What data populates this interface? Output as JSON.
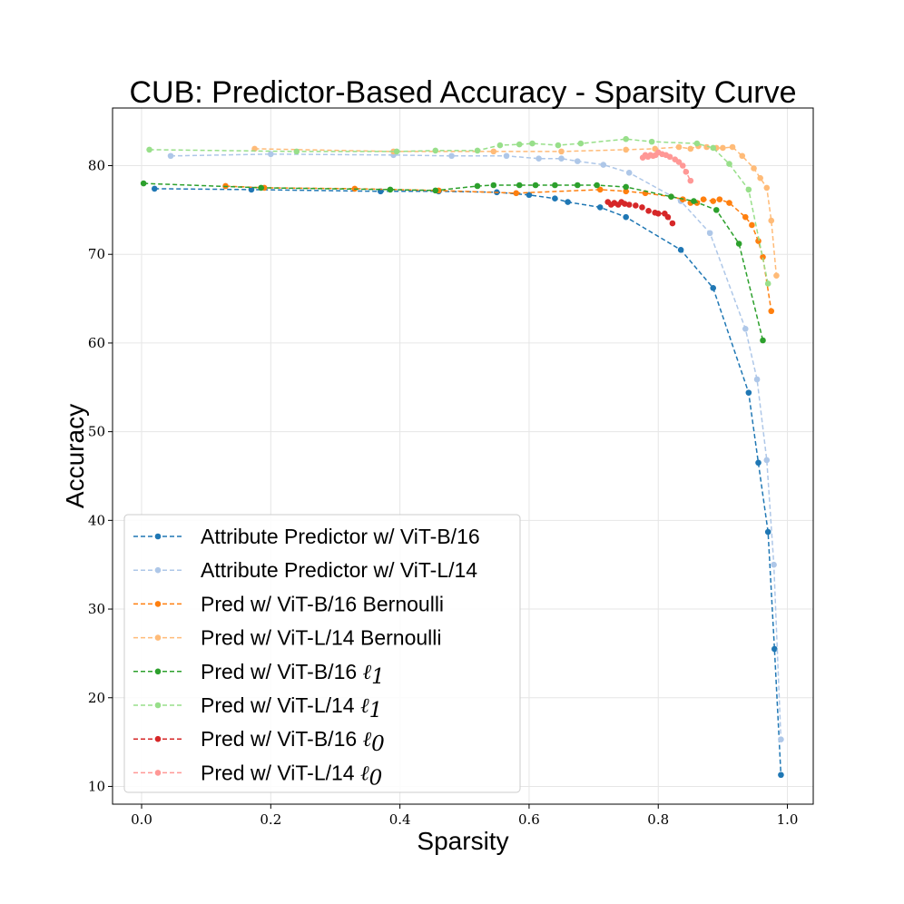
{
  "chart_data": {
    "type": "line",
    "title": "CUB: Predictor-Based Accuracy - Sparsity Curve",
    "xlabel": "Sparsity",
    "ylabel": "Accuracy",
    "xlim": [
      -0.045,
      1.04
    ],
    "ylim": [
      8.0,
      86.5
    ],
    "xticks": [
      0.0,
      0.2,
      0.4,
      0.6,
      0.8,
      1.0
    ],
    "xtick_labels": [
      "0.0",
      "0.2",
      "0.4",
      "0.6",
      "0.8",
      "1.0"
    ],
    "yticks": [
      10,
      20,
      30,
      40,
      50,
      60,
      70,
      80
    ],
    "ytick_labels": [
      "10",
      "20",
      "30",
      "40",
      "50",
      "60",
      "70",
      "80"
    ],
    "grid": true,
    "legend_position": "lower-left",
    "series": [
      {
        "name": "Attribute Predictor w/ ViT-B/16",
        "color": "#1f77b4",
        "x": [
          0.02,
          0.17,
          0.37,
          0.46,
          0.55,
          0.6,
          0.64,
          0.66,
          0.71,
          0.75,
          0.835,
          0.885,
          0.94,
          0.955,
          0.97,
          0.98,
          0.99
        ],
        "y": [
          77.4,
          77.3,
          77.1,
          77.1,
          77.0,
          76.7,
          76.3,
          75.9,
          75.3,
          74.2,
          70.5,
          66.2,
          54.4,
          46.5,
          38.7,
          25.5,
          11.3
        ]
      },
      {
        "name": "Attribute Predictor w/ ViT-L/14",
        "color": "#aec7e8",
        "x": [
          0.045,
          0.2,
          0.39,
          0.48,
          0.565,
          0.615,
          0.65,
          0.675,
          0.715,
          0.755,
          0.835,
          0.88,
          0.935,
          0.953,
          0.968,
          0.979,
          0.99
        ],
        "y": [
          81.1,
          81.3,
          81.2,
          81.1,
          81.1,
          80.8,
          80.8,
          80.5,
          80.1,
          79.2,
          76.0,
          72.4,
          61.6,
          55.9,
          46.8,
          35.0,
          15.3
        ]
      },
      {
        "name": "Pred w/ ViT-B/16 Bernoulli",
        "color": "#ff7f0e",
        "x": [
          0.13,
          0.19,
          0.33,
          0.46,
          0.58,
          0.71,
          0.75,
          0.78,
          0.82,
          0.838,
          0.85,
          0.86,
          0.87,
          0.885,
          0.895,
          0.91,
          0.935,
          0.945,
          0.955,
          0.962,
          0.975
        ],
        "y": [
          77.7,
          77.5,
          77.4,
          77.2,
          76.9,
          77.3,
          77.1,
          76.9,
          76.5,
          76.2,
          75.8,
          75.8,
          76.2,
          76.0,
          76.2,
          75.8,
          74.2,
          73.3,
          71.5,
          69.7,
          63.6
        ]
      },
      {
        "name": "Pred w/ ViT-L/14 Bernoulli",
        "color": "#ffbb78",
        "x": [
          0.175,
          0.39,
          0.545,
          0.65,
          0.75,
          0.795,
          0.832,
          0.85,
          0.862,
          0.875,
          0.89,
          0.9,
          0.915,
          0.93,
          0.948,
          0.958,
          0.968,
          0.975,
          0.983
        ],
        "y": [
          81.9,
          81.6,
          81.6,
          81.6,
          81.8,
          81.9,
          82.1,
          81.9,
          82.2,
          82.1,
          82.0,
          82.0,
          82.1,
          81.1,
          79.7,
          78.6,
          77.5,
          73.8,
          67.6
        ]
      },
      {
        "name": "Pred w/ ViT-B/16 ℓ1",
        "legend_base": "Pred w/ ViT-B/16",
        "legend_var": "ℓ",
        "legend_sub": "1",
        "color": "#2ca02c",
        "x": [
          0.003,
          0.185,
          0.385,
          0.455,
          0.52,
          0.545,
          0.585,
          0.61,
          0.64,
          0.675,
          0.705,
          0.75,
          0.82,
          0.855,
          0.89,
          0.925,
          0.962
        ],
        "y": [
          78.0,
          77.5,
          77.3,
          77.2,
          77.7,
          77.8,
          77.8,
          77.8,
          77.8,
          77.8,
          77.8,
          77.6,
          76.5,
          76.0,
          75.0,
          71.2,
          60.3
        ]
      },
      {
        "name": "Pred w/ ViT-L/14 ℓ1",
        "legend_base": "Pred w/ ViT-L/14",
        "legend_var": "ℓ",
        "legend_sub": "1",
        "color": "#98df8a",
        "x": [
          0.012,
          0.24,
          0.395,
          0.455,
          0.52,
          0.555,
          0.585,
          0.605,
          0.645,
          0.68,
          0.75,
          0.79,
          0.86,
          0.885,
          0.91,
          0.94,
          0.97
        ],
        "y": [
          81.8,
          81.6,
          81.6,
          81.7,
          81.7,
          82.3,
          82.4,
          82.5,
          82.3,
          82.5,
          83.0,
          82.7,
          82.5,
          82.0,
          80.2,
          77.3,
          66.7
        ]
      },
      {
        "name": "Pred w/ ViT-B/16 ℓ0",
        "legend_base": "Pred w/ ViT-B/16",
        "legend_var": "ℓ",
        "legend_sub": "0",
        "color": "#d62728",
        "x": [
          0.722,
          0.727,
          0.732,
          0.738,
          0.743,
          0.748,
          0.755,
          0.765,
          0.775,
          0.785,
          0.795,
          0.8,
          0.81,
          0.815,
          0.822
        ],
        "y": [
          75.9,
          75.6,
          75.8,
          75.6,
          75.9,
          75.7,
          75.6,
          75.5,
          75.3,
          74.9,
          74.7,
          74.6,
          74.6,
          74.2,
          73.5
        ]
      },
      {
        "name": "Pred w/ ViT-L/14 ℓ0",
        "legend_base": "Pred w/ ViT-L/14",
        "legend_var": "ℓ",
        "legend_sub": "0",
        "color": "#ff9896",
        "x": [
          0.776,
          0.78,
          0.784,
          0.788,
          0.792,
          0.796,
          0.8,
          0.806,
          0.812,
          0.818,
          0.826,
          0.832,
          0.838,
          0.843,
          0.85
        ],
        "y": [
          80.9,
          81.2,
          81.0,
          81.2,
          81.1,
          81.2,
          81.5,
          81.3,
          81.2,
          81.0,
          80.7,
          80.4,
          80.0,
          79.3,
          78.3
        ]
      }
    ]
  }
}
